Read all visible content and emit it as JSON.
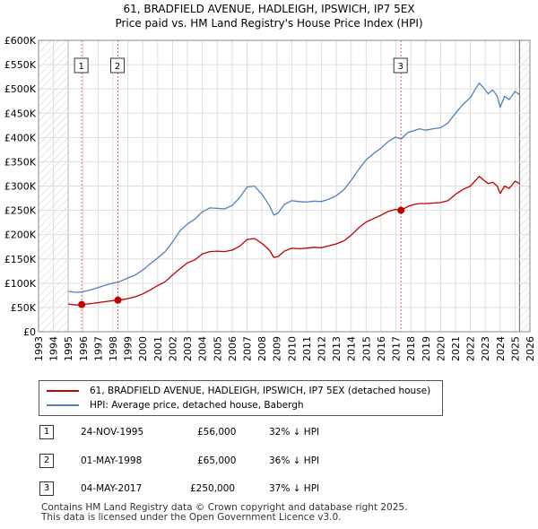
{
  "title_line1": "61, BRADFIELD AVENUE, HADLEIGH, IPSWICH, IP7 5EX",
  "title_line2": "Price paid vs. HM Land Registry's House Price Index (HPI)",
  "colors": {
    "property": "#c00000",
    "hpi": "#4f81bd",
    "grid": "#dddddd",
    "marker_line": "#e06666",
    "hatch": "#cccccc"
  },
  "chart_data": {
    "type": "line",
    "title": "Price paid vs. HM Land Registry's House Price Index (HPI)",
    "xlabel": "",
    "ylabel": "",
    "xlim": [
      1993,
      2026
    ],
    "ylim": [
      0,
      600000
    ],
    "y_ticks": [
      0,
      50000,
      100000,
      150000,
      200000,
      250000,
      300000,
      350000,
      400000,
      450000,
      500000,
      550000,
      600000
    ],
    "y_tick_labels": [
      "£0",
      "£50K",
      "£100K",
      "£150K",
      "£200K",
      "£250K",
      "£300K",
      "£350K",
      "£400K",
      "£450K",
      "£500K",
      "£550K",
      "£600K"
    ],
    "x_ticks": [
      1993,
      1994,
      1995,
      1996,
      1997,
      1998,
      1999,
      2000,
      2001,
      2002,
      2003,
      2004,
      2005,
      2006,
      2007,
      2008,
      2009,
      2010,
      2011,
      2012,
      2013,
      2014,
      2015,
      2016,
      2017,
      2018,
      2019,
      2020,
      2021,
      2022,
      2023,
      2024,
      2025,
      2026
    ],
    "data_range": [
      1995.0,
      2025.3
    ],
    "grid": true,
    "series": [
      {
        "name": "61, BRADFIELD AVENUE, HADLEIGH, IPSWICH, IP7 5EX (detached house)",
        "x": [
          1995.0,
          1995.5,
          1995.9,
          1996.5,
          1997.0,
          1997.5,
          1998.0,
          1998.35,
          1998.8,
          1999.5,
          2000.0,
          2000.5,
          2001.0,
          2001.5,
          2002.0,
          2002.5,
          2003.0,
          2003.5,
          2004.0,
          2004.5,
          2005.0,
          2005.5,
          2006.0,
          2006.5,
          2007.0,
          2007.5,
          2008.0,
          2008.5,
          2008.8,
          2009.1,
          2009.5,
          2010.0,
          2010.5,
          2011.0,
          2011.5,
          2012.0,
          2012.5,
          2013.0,
          2013.5,
          2014.0,
          2014.5,
          2015.0,
          2015.5,
          2016.0,
          2016.5,
          2017.0,
          2017.35,
          2017.8,
          2018.2,
          2018.6,
          2019.0,
          2019.5,
          2020.0,
          2020.5,
          2021.0,
          2021.5,
          2022.0,
          2022.3,
          2022.6,
          2022.9,
          2023.2,
          2023.5,
          2023.8,
          2024.0,
          2024.3,
          2024.6,
          2025.0,
          2025.3
        ],
        "values": [
          57000,
          55000,
          56000,
          58000,
          60000,
          62000,
          64000,
          65000,
          67000,
          72000,
          78000,
          86000,
          95000,
          103000,
          117000,
          130000,
          142000,
          148000,
          160000,
          165000,
          166000,
          165000,
          168000,
          176000,
          190000,
          192000,
          182000,
          168000,
          153000,
          155000,
          166000,
          172000,
          171000,
          172000,
          174000,
          173000,
          177000,
          181000,
          187000,
          199000,
          214000,
          226000,
          233000,
          240000,
          248000,
          252000,
          250000,
          258000,
          262000,
          264000,
          264000,
          265000,
          266000,
          270000,
          283000,
          293000,
          300000,
          310000,
          320000,
          312000,
          305000,
          308000,
          300000,
          285000,
          300000,
          295000,
          310000,
          305000
        ]
      },
      {
        "name": "HPI: Average price, detached house, Babergh",
        "x": [
          1995.0,
          1995.5,
          1995.9,
          1996.5,
          1997.0,
          1997.5,
          1998.0,
          1998.35,
          1998.8,
          1999.5,
          2000.0,
          2000.5,
          2001.0,
          2001.5,
          2002.0,
          2002.5,
          2003.0,
          2003.5,
          2004.0,
          2004.5,
          2005.0,
          2005.5,
          2006.0,
          2006.5,
          2007.0,
          2007.5,
          2008.0,
          2008.5,
          2008.8,
          2009.1,
          2009.5,
          2010.0,
          2010.5,
          2011.0,
          2011.5,
          2012.0,
          2012.5,
          2013.0,
          2013.5,
          2014.0,
          2014.5,
          2015.0,
          2015.5,
          2016.0,
          2016.5,
          2017.0,
          2017.35,
          2017.8,
          2018.2,
          2018.6,
          2019.0,
          2019.5,
          2020.0,
          2020.5,
          2021.0,
          2021.5,
          2022.0,
          2022.3,
          2022.6,
          2022.9,
          2023.2,
          2023.5,
          2023.8,
          2024.0,
          2024.3,
          2024.6,
          2025.0,
          2025.3
        ],
        "values": [
          83000,
          81000,
          82000,
          86000,
          91000,
          96000,
          100000,
          102000,
          108000,
          117000,
          127000,
          140000,
          152000,
          165000,
          185000,
          208000,
          222000,
          232000,
          247000,
          255000,
          254000,
          253000,
          260000,
          276000,
          298000,
          300000,
          283000,
          260000,
          240000,
          245000,
          262000,
          270000,
          268000,
          267000,
          269000,
          268000,
          273000,
          280000,
          292000,
          312000,
          334000,
          354000,
          367000,
          378000,
          392000,
          401000,
          397000,
          410000,
          414000,
          418000,
          415000,
          418000,
          420000,
          430000,
          450000,
          468000,
          482000,
          498000,
          512000,
          502000,
          490000,
          498000,
          485000,
          462000,
          485000,
          478000,
          495000,
          488000
        ]
      }
    ],
    "sales": [
      {
        "label": "1",
        "x": 1995.9,
        "value": 56000
      },
      {
        "label": "2",
        "x": 1998.33,
        "value": 65000
      },
      {
        "label": "3",
        "x": 2017.34,
        "value": 250000
      }
    ],
    "legend_position": "below"
  },
  "legend": {
    "property_label": "61, BRADFIELD AVENUE, HADLEIGH, IPSWICH, IP7 5EX (detached house)",
    "hpi_label": "HPI: Average price, detached house, Babergh"
  },
  "transactions": [
    {
      "num": "1",
      "date": "24-NOV-1995",
      "price": "£56,000",
      "hpi": "32% ↓ HPI"
    },
    {
      "num": "2",
      "date": "01-MAY-1998",
      "price": "£65,000",
      "hpi": "36% ↓ HPI"
    },
    {
      "num": "3",
      "date": "04-MAY-2017",
      "price": "£250,000",
      "hpi": "37% ↓ HPI"
    }
  ],
  "footer_line1": "Contains HM Land Registry data © Crown copyright and database right 2025.",
  "footer_line2": "This data is licensed under the Open Government Licence v3.0."
}
